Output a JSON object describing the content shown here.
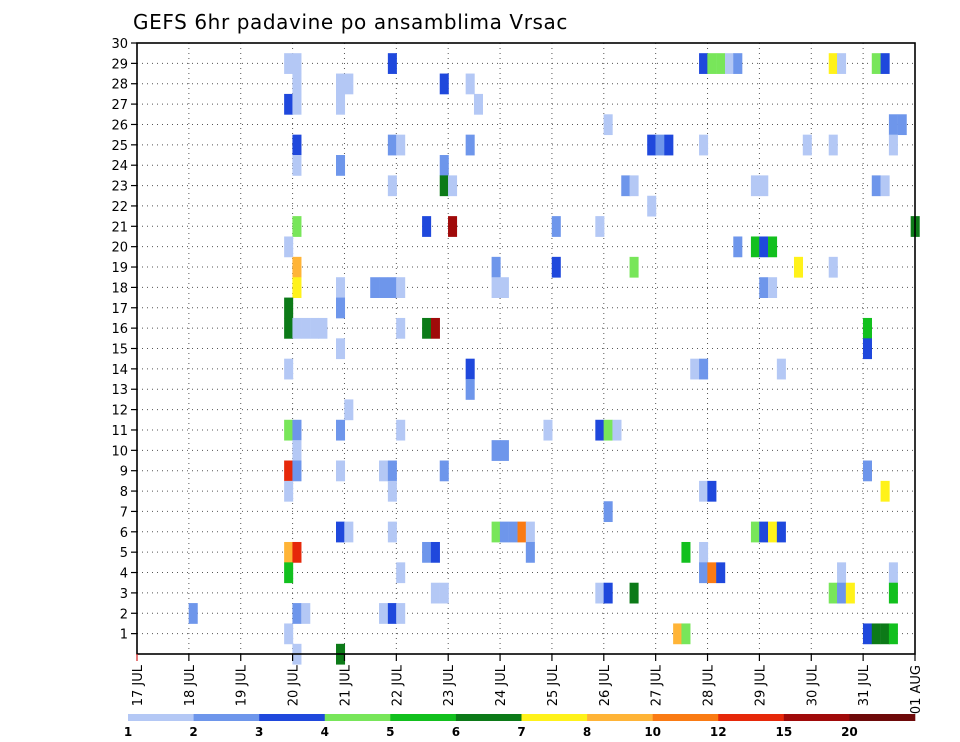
{
  "chart_data": {
    "type": "heatmap",
    "title": "GEFS 6hr padavine po ansamblima Vrsac",
    "x_tick_labels": [
      "17 JUL",
      "18 JUL",
      "19 JUL",
      "20 JUL",
      "21 JUL",
      "22 JUL",
      "23 JUL",
      "24 JUL",
      "25 JUL",
      "26 JUL",
      "27 JUL",
      "28 JUL",
      "29 JUL",
      "30 JUL",
      "31 JUL",
      "01 AUG"
    ],
    "x_range_days": [
      0,
      15
    ],
    "y_tick_labels": [
      1,
      2,
      3,
      4,
      5,
      6,
      7,
      8,
      9,
      10,
      11,
      12,
      13,
      14,
      15,
      16,
      17,
      18,
      19,
      20,
      21,
      22,
      23,
      24,
      25,
      26,
      27,
      28,
      29,
      30
    ],
    "y_range": [
      0,
      30
    ],
    "grid": true,
    "legend": {
      "placement": "bottom",
      "bin_labels": [
        1,
        2,
        3,
        4,
        5,
        6,
        7,
        8,
        10,
        12,
        15,
        20
      ],
      "colors": [
        "#b4c8f5",
        "#6e96eb",
        "#1f48dc",
        "#78e65a",
        "#12c01e",
        "#0c7a18",
        "#fff21a",
        "#ffb437",
        "#fa7b14",
        "#e6280a",
        "#a00a0a",
        "#6e0a0a"
      ]
    },
    "cells": [
      [
        2.92,
        29,
        0
      ],
      [
        3.08,
        29,
        0
      ],
      [
        4.92,
        29,
        2
      ],
      [
        10.92,
        29,
        2
      ],
      [
        11.08,
        29,
        3
      ],
      [
        11.25,
        29,
        3
      ],
      [
        11.42,
        29,
        0
      ],
      [
        11.58,
        29,
        1
      ],
      [
        13.42,
        29,
        6
      ],
      [
        13.58,
        29,
        0
      ],
      [
        14.25,
        29,
        3
      ],
      [
        14.42,
        29,
        2
      ],
      [
        3.08,
        28,
        0
      ],
      [
        3.92,
        28,
        0
      ],
      [
        4.08,
        28,
        0
      ],
      [
        5.92,
        28,
        2
      ],
      [
        6.42,
        28,
        0
      ],
      [
        2.92,
        27,
        2
      ],
      [
        3.08,
        27,
        0
      ],
      [
        3.92,
        27,
        0
      ],
      [
        6.58,
        27,
        0
      ],
      [
        9.08,
        26,
        0
      ],
      [
        14.58,
        26,
        1
      ],
      [
        14.75,
        26,
        1
      ],
      [
        3.08,
        25,
        2
      ],
      [
        4.92,
        25,
        1
      ],
      [
        5.08,
        25,
        0
      ],
      [
        6.42,
        25,
        1
      ],
      [
        9.92,
        25,
        2
      ],
      [
        10.08,
        25,
        1
      ],
      [
        10.25,
        25,
        2
      ],
      [
        10.92,
        25,
        0
      ],
      [
        12.92,
        25,
        0
      ],
      [
        13.42,
        25,
        0
      ],
      [
        14.58,
        25,
        0
      ],
      [
        3.08,
        24,
        0
      ],
      [
        3.92,
        24,
        1
      ],
      [
        5.92,
        24,
        1
      ],
      [
        4.92,
        23,
        0
      ],
      [
        5.92,
        23,
        5
      ],
      [
        6.08,
        23,
        0
      ],
      [
        9.42,
        23,
        1
      ],
      [
        9.58,
        23,
        0
      ],
      [
        11.92,
        23,
        0
      ],
      [
        12.08,
        23,
        0
      ],
      [
        14.25,
        23,
        1
      ],
      [
        14.42,
        23,
        0
      ],
      [
        9.92,
        22,
        0
      ],
      [
        3.08,
        21,
        3
      ],
      [
        5.58,
        21,
        2
      ],
      [
        6.08,
        21,
        10
      ],
      [
        8.08,
        21,
        1
      ],
      [
        8.92,
        21,
        0
      ],
      [
        15.0,
        21,
        5
      ],
      [
        2.92,
        20,
        0
      ],
      [
        11.58,
        20,
        1
      ],
      [
        11.92,
        20,
        4
      ],
      [
        12.08,
        20,
        2
      ],
      [
        12.25,
        20,
        4
      ],
      [
        3.08,
        19,
        7
      ],
      [
        6.92,
        19,
        1
      ],
      [
        8.08,
        19,
        2
      ],
      [
        9.58,
        19,
        3
      ],
      [
        12.75,
        19,
        6
      ],
      [
        13.42,
        19,
        0
      ],
      [
        3.08,
        18,
        6
      ],
      [
        3.92,
        18,
        0
      ],
      [
        4.58,
        18,
        1
      ],
      [
        4.75,
        18,
        1
      ],
      [
        4.92,
        18,
        1
      ],
      [
        5.08,
        18,
        0
      ],
      [
        6.92,
        18,
        0
      ],
      [
        7.08,
        18,
        0
      ],
      [
        12.08,
        18,
        1
      ],
      [
        12.25,
        18,
        0
      ],
      [
        2.92,
        17,
        5
      ],
      [
        3.92,
        17,
        1
      ],
      [
        2.92,
        16,
        5
      ],
      [
        3.08,
        16,
        0
      ],
      [
        3.25,
        16,
        0
      ],
      [
        3.42,
        16,
        0
      ],
      [
        3.58,
        16,
        0
      ],
      [
        5.08,
        16,
        0
      ],
      [
        5.58,
        16,
        5
      ],
      [
        5.75,
        16,
        10
      ],
      [
        14.08,
        16,
        4
      ],
      [
        3.92,
        15,
        0
      ],
      [
        14.08,
        15,
        2
      ],
      [
        2.92,
        14,
        0
      ],
      [
        6.42,
        14,
        2
      ],
      [
        10.75,
        14,
        0
      ],
      [
        10.92,
        14,
        1
      ],
      [
        12.42,
        14,
        0
      ],
      [
        6.42,
        13,
        1
      ],
      [
        4.08,
        12,
        0
      ],
      [
        2.92,
        11,
        3
      ],
      [
        3.08,
        11,
        1
      ],
      [
        3.92,
        11,
        1
      ],
      [
        5.08,
        11,
        0
      ],
      [
        7.92,
        11,
        0
      ],
      [
        8.92,
        11,
        2
      ],
      [
        9.08,
        11,
        3
      ],
      [
        9.25,
        11,
        0
      ],
      [
        3.08,
        10,
        0
      ],
      [
        6.92,
        10,
        1
      ],
      [
        7.08,
        10,
        1
      ],
      [
        2.92,
        9,
        9
      ],
      [
        3.08,
        9,
        1
      ],
      [
        3.92,
        9,
        0
      ],
      [
        4.75,
        9,
        0
      ],
      [
        4.92,
        9,
        1
      ],
      [
        5.92,
        9,
        1
      ],
      [
        14.08,
        9,
        1
      ],
      [
        2.92,
        8,
        0
      ],
      [
        4.92,
        8,
        0
      ],
      [
        10.92,
        8,
        0
      ],
      [
        11.08,
        8,
        2
      ],
      [
        14.42,
        8,
        6
      ],
      [
        9.08,
        7,
        1
      ],
      [
        3.92,
        6,
        2
      ],
      [
        4.08,
        6,
        0
      ],
      [
        4.92,
        6,
        0
      ],
      [
        6.92,
        6,
        3
      ],
      [
        7.08,
        6,
        1
      ],
      [
        7.25,
        6,
        1
      ],
      [
        7.42,
        6,
        8
      ],
      [
        7.58,
        6,
        0
      ],
      [
        11.92,
        6,
        3
      ],
      [
        12.08,
        6,
        2
      ],
      [
        12.25,
        6,
        6
      ],
      [
        12.42,
        6,
        2
      ],
      [
        2.92,
        5,
        7
      ],
      [
        3.08,
        5,
        9
      ],
      [
        5.58,
        5,
        1
      ],
      [
        5.75,
        5,
        2
      ],
      [
        7.58,
        5,
        1
      ],
      [
        10.58,
        5,
        4
      ],
      [
        10.92,
        5,
        0
      ],
      [
        2.92,
        4,
        4
      ],
      [
        5.08,
        4,
        0
      ],
      [
        10.92,
        4,
        1
      ],
      [
        11.08,
        4,
        8
      ],
      [
        11.25,
        4,
        2
      ],
      [
        13.58,
        4,
        0
      ],
      [
        14.58,
        4,
        0
      ],
      [
        5.75,
        3,
        0
      ],
      [
        5.92,
        3,
        0
      ],
      [
        8.92,
        3,
        0
      ],
      [
        9.08,
        3,
        2
      ],
      [
        9.58,
        3,
        5
      ],
      [
        13.42,
        3,
        3
      ],
      [
        13.58,
        3,
        1
      ],
      [
        13.75,
        3,
        6
      ],
      [
        14.58,
        3,
        4
      ],
      [
        1.08,
        2,
        1
      ],
      [
        3.08,
        2,
        1
      ],
      [
        3.25,
        2,
        0
      ],
      [
        4.75,
        2,
        0
      ],
      [
        4.92,
        2,
        2
      ],
      [
        5.08,
        2,
        0
      ],
      [
        2.92,
        1,
        0
      ],
      [
        10.42,
        1,
        7
      ],
      [
        10.58,
        1,
        3
      ],
      [
        14.08,
        1,
        2
      ],
      [
        14.25,
        1,
        5
      ],
      [
        14.42,
        1,
        5
      ],
      [
        14.58,
        1,
        4
      ],
      [
        3.08,
        0,
        0
      ],
      [
        3.92,
        0,
        5
      ]
    ]
  }
}
